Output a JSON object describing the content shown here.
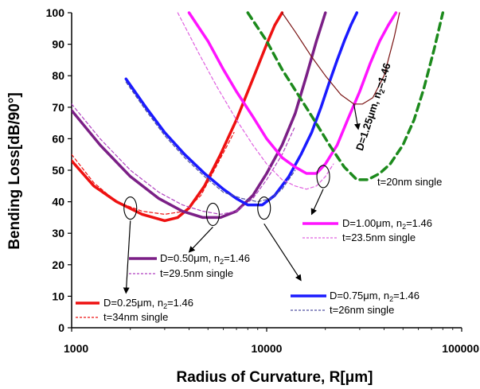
{
  "chart_data": {
    "type": "line",
    "xscale": "log",
    "xlim": [
      1000,
      100000
    ],
    "ylim": [
      0,
      100
    ],
    "grid": false,
    "xlabel": "Radius of Curvature, R[μm]",
    "ylabel": "Bending Loss[dB/90°]",
    "xticks": [
      "1000",
      "10000",
      "100000"
    ],
    "yticks": [
      "0",
      "10",
      "20",
      "30",
      "40",
      "50",
      "60",
      "70",
      "80",
      "90",
      "100"
    ],
    "series": [
      {
        "name": "D=0.25μm, n2=1.46",
        "color": "#ee1111",
        "style": "solid",
        "width": 3.5,
        "x": [
          1000,
          1300,
          1700,
          2300,
          3000,
          3500,
          4000,
          4800,
          5800,
          7000,
          8500,
          10000,
          11000,
          12000
        ],
        "y": [
          53,
          45,
          40,
          36,
          34,
          35,
          38,
          45,
          55,
          66,
          79,
          90,
          96,
          100
        ]
      },
      {
        "name": "t=34nm single",
        "color": "#ee1111",
        "style": "dashed",
        "width": 1.2,
        "x": [
          1000,
          1300,
          1700,
          2300,
          3000,
          3800,
          4600,
          5600,
          6800
        ],
        "y": [
          55,
          46,
          40,
          37,
          36,
          37,
          42,
          52,
          62
        ]
      },
      {
        "name": "D=0.50μm, n2=1.46",
        "color": "#7b1f86",
        "style": "solid",
        "width": 3.5,
        "x": [
          1000,
          1400,
          2000,
          2800,
          3700,
          4700,
          5800,
          7000,
          8500,
          10000,
          12000,
          14000,
          16000,
          18000,
          20000
        ],
        "y": [
          69,
          58,
          48,
          41,
          37,
          35,
          35,
          37,
          42,
          49,
          58,
          68,
          80,
          91,
          100
        ]
      },
      {
        "name": "t=29.5nm single",
        "color": "#b040c0",
        "style": "dashed",
        "width": 1.2,
        "x": [
          1000,
          1400,
          2000,
          2800,
          3700,
          4700,
          5800,
          7000,
          8500,
          10000,
          12000,
          14000
        ],
        "y": [
          71,
          60,
          50,
          43,
          39,
          37,
          36,
          37,
          41,
          47,
          55,
          64
        ]
      },
      {
        "name": "D=0.75μm, n2=1.46",
        "color": "#1a1aff",
        "style": "solid",
        "width": 3.5,
        "x": [
          1900,
          2400,
          3000,
          3800,
          4800,
          6000,
          7000,
          8000,
          9500,
          11000,
          13000,
          15000,
          17000,
          19000,
          21000,
          23000,
          25000,
          27000,
          29000
        ],
        "y": [
          79,
          70,
          62,
          55,
          49,
          44,
          41,
          39,
          39,
          42,
          48,
          55,
          62,
          70,
          78,
          85,
          91,
          96,
          100
        ]
      },
      {
        "name": "t=26nm single",
        "color": "#5050a0",
        "style": "dashed",
        "width": 1.2,
        "x": [
          1900,
          2400,
          3000,
          3800,
          4800,
          6000,
          7500,
          9000,
          10500,
          12000,
          14000
        ],
        "y": [
          78,
          69,
          61,
          54,
          48,
          43,
          41,
          40,
          41,
          44,
          50
        ]
      },
      {
        "name": "D=1.00μm, n2=1.46",
        "color": "#ff14ff",
        "style": "solid",
        "width": 3.5,
        "x": [
          4000,
          5000,
          6000,
          7000,
          8500,
          10000,
          12000,
          14000,
          16000,
          18000,
          20000,
          23000,
          26000,
          30000,
          34000,
          38000,
          42000,
          46000
        ],
        "y": [
          100,
          91,
          82,
          75,
          67,
          60,
          54,
          51,
          49,
          49,
          52,
          58,
          66,
          75,
          84,
          91,
          96,
          100
        ]
      },
      {
        "name": "t=23.5nm single",
        "color": "#e060e0",
        "style": "dashed",
        "width": 1.2,
        "x": [
          3500,
          4500,
          5500,
          7000,
          8500,
          10000,
          12000,
          14000,
          16000,
          18000,
          20000,
          22000
        ],
        "y": [
          100,
          87,
          77,
          66,
          58,
          52,
          47,
          45,
          44,
          45,
          48,
          52
        ]
      },
      {
        "name": "D=1.25μm, n2=1.46",
        "color": "#7a1414",
        "style": "solid",
        "width": 1.2,
        "x": [
          12000,
          14000,
          17000,
          20000,
          24000,
          28000,
          31000,
          35000,
          40000,
          45000,
          48000
        ],
        "y": [
          100,
          94,
          86,
          80,
          74,
          71,
          71,
          73,
          80,
          92,
          100
        ]
      },
      {
        "name": "t=20nm single",
        "color": "#1c8a1c",
        "style": "dashed",
        "width": 3.5,
        "x": [
          8000,
          10000,
          12000,
          14500,
          17500,
          21000,
          25000,
          29000,
          33000,
          38000,
          43000,
          50000,
          57000,
          64000,
          72000,
          80000
        ],
        "y": [
          100,
          91,
          82,
          74,
          66,
          58,
          51,
          47,
          47,
          49,
          52,
          58,
          66,
          76,
          88,
          100
        ]
      }
    ],
    "legend": [
      {
        "series": 0,
        "label": "D=0.25μm, n",
        "sub": "2",
        "tail": "=1.46"
      },
      {
        "series": 1,
        "label": "t=34nm single"
      },
      {
        "series": 2,
        "label": "D=0.50μm, n",
        "sub": "2",
        "tail": "=1.46"
      },
      {
        "series": 3,
        "label": "t=29.5nm single"
      },
      {
        "series": 4,
        "label": "D=0.75μm, n",
        "sub": "2",
        "tail": "=1.46"
      },
      {
        "series": 5,
        "label": "t=26nm single"
      },
      {
        "series": 6,
        "label": "D=1.00μm, n",
        "sub": "2",
        "tail": "=1.46"
      },
      {
        "series": 7,
        "label": "t=23.5nm single"
      },
      {
        "series": 9,
        "label": "t=20nm single"
      }
    ],
    "annotation_rotated": {
      "label": "D=1.25μm, n",
      "sub": "2",
      "tail": "=1.46"
    }
  }
}
